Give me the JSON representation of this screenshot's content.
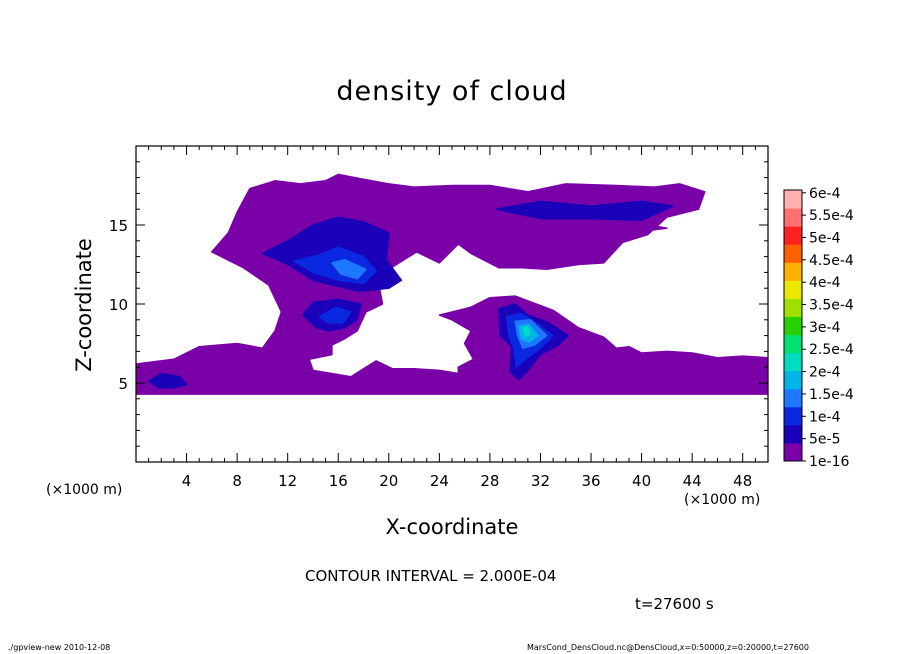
{
  "chart_data": {
    "type": "heatmap",
    "title": "density of cloud",
    "xlabel": "X-coordinate",
    "ylabel": "Z-coordinate",
    "x_unit": "(×1000 m)",
    "z_unit": "(×1000 m)",
    "xlim": [
      0,
      50
    ],
    "ylim": [
      0,
      20
    ],
    "x_ticks": [
      4,
      8,
      12,
      16,
      20,
      24,
      28,
      32,
      36,
      40,
      44,
      48
    ],
    "y_ticks": [
      5,
      10,
      15
    ],
    "x_tick_labels": [
      "4",
      "8",
      "12",
      "16",
      "20",
      "24",
      "28",
      "32",
      "36",
      "40",
      "44",
      "48"
    ],
    "y_tick_labels": [
      "5",
      "10",
      "15"
    ],
    "legend": {
      "placement": "right",
      "labels": [
        "1e-16",
        "5e-5",
        "1e-4",
        "1.5e-4",
        "2e-4",
        "2.5e-4",
        "3e-4",
        "3.5e-4",
        "4e-4",
        "4.5e-4",
        "5e-4",
        "5.5e-4",
        "6e-4"
      ],
      "colors": [
        "#7a00a8",
        "#1a00b8",
        "#0a28e0",
        "#1e78ff",
        "#00b4e8",
        "#00dcc0",
        "#00e070",
        "#28d000",
        "#a0e000",
        "#e8e800",
        "#ffb000",
        "#ff6000",
        "#ff2020",
        "#ff7070",
        "#ffb0b0"
      ]
    },
    "cloud_regions": [
      {
        "level": "1e-16",
        "color": "#7a00a8",
        "polygon": [
          [
            0,
            4.3
          ],
          [
            0,
            6.2
          ],
          [
            3,
            6.5
          ],
          [
            5,
            7.3
          ],
          [
            8,
            7.5
          ],
          [
            10,
            7.2
          ],
          [
            11,
            8.3
          ],
          [
            11.5,
            9.5
          ],
          [
            10.5,
            11.2
          ],
          [
            8.5,
            12.3
          ],
          [
            6,
            13.3
          ],
          [
            7.3,
            14.5
          ],
          [
            8,
            15.8
          ],
          [
            9,
            17.3
          ],
          [
            11,
            17.8
          ],
          [
            13,
            17.6
          ],
          [
            15,
            17.8
          ],
          [
            16,
            18.2
          ],
          [
            17.3,
            18
          ],
          [
            20,
            17.6
          ],
          [
            22,
            17.4
          ],
          [
            25,
            17.5
          ],
          [
            28,
            17.5
          ],
          [
            31,
            17.1
          ],
          [
            34,
            17.6
          ],
          [
            38,
            17.5
          ],
          [
            41,
            17.4
          ],
          [
            43,
            17.6
          ],
          [
            45,
            17.1
          ],
          [
            44.5,
            16
          ],
          [
            42,
            15.5
          ],
          [
            40.5,
            14.4
          ],
          [
            38.5,
            13.9
          ],
          [
            37,
            12.6
          ],
          [
            35,
            12.5
          ],
          [
            32.5,
            12.2
          ],
          [
            30.5,
            12.3
          ],
          [
            28.7,
            12.3
          ],
          [
            26.5,
            13.2
          ],
          [
            25.5,
            13.8
          ],
          [
            24,
            12.6
          ],
          [
            22.2,
            13.3
          ],
          [
            20,
            12.2
          ],
          [
            19.2,
            11.3
          ],
          [
            19.5,
            10
          ],
          [
            18.2,
            9.5
          ],
          [
            17.5,
            8.3
          ],
          [
            16.5,
            7.8
          ],
          [
            15.5,
            7.4
          ],
          [
            15.5,
            6.8
          ],
          [
            13.7,
            6.5
          ],
          [
            14,
            5.8
          ],
          [
            17,
            5.4
          ],
          [
            18,
            5.9
          ],
          [
            19,
            6.4
          ],
          [
            20.3,
            5.9
          ],
          [
            22,
            5.9
          ],
          [
            24,
            5.8
          ],
          [
            25.5,
            5.6
          ],
          [
            25.5,
            6
          ],
          [
            26.7,
            6.5
          ],
          [
            26,
            7.5
          ],
          [
            26.5,
            8.3
          ],
          [
            25,
            9
          ],
          [
            24,
            9.3
          ],
          [
            26.5,
            9.8
          ],
          [
            28,
            10.4
          ],
          [
            30,
            10.5
          ],
          [
            33,
            9.6
          ],
          [
            35,
            8.5
          ],
          [
            37,
            7.9
          ],
          [
            38,
            7.2
          ],
          [
            39,
            7.3
          ],
          [
            40,
            6.9
          ],
          [
            42,
            7
          ],
          [
            44,
            6.9
          ],
          [
            46,
            6.6
          ],
          [
            48,
            6.7
          ],
          [
            50,
            6.6
          ],
          [
            50,
            4.3
          ]
        ]
      },
      {
        "level": "1e-16",
        "color": "#7a00a8",
        "polygon": [
          [
            24,
            13.8
          ],
          [
            27,
            13.9
          ],
          [
            29,
            14.5
          ],
          [
            32,
            15
          ],
          [
            36,
            14.7
          ],
          [
            40,
            14.6
          ],
          [
            42,
            14.8
          ],
          [
            38,
            15.4
          ],
          [
            34,
            15.1
          ],
          [
            30,
            15.1
          ],
          [
            27,
            15
          ],
          [
            24.3,
            14.5
          ]
        ]
      },
      {
        "level": "5e-5",
        "color": "#1a00b8",
        "polygon": [
          [
            10,
            13.2
          ],
          [
            12,
            14
          ],
          [
            14,
            15
          ],
          [
            16,
            15.5
          ],
          [
            18,
            15.2
          ],
          [
            20,
            14.5
          ],
          [
            19.8,
            12.8
          ],
          [
            21,
            11.5
          ],
          [
            20,
            11
          ],
          [
            17.7,
            10.8
          ],
          [
            14,
            11.5
          ],
          [
            12,
            12.5
          ]
        ]
      },
      {
        "level": "5e-5",
        "color": "#1a00b8",
        "polygon": [
          [
            13.2,
            9.3
          ],
          [
            14,
            10.1
          ],
          [
            16,
            10.3
          ],
          [
            17.8,
            10
          ],
          [
            17.5,
            9
          ],
          [
            16.5,
            8.5
          ],
          [
            15.3,
            8.3
          ],
          [
            14.3,
            8.5
          ]
        ]
      },
      {
        "level": "5e-5",
        "color": "#1a00b8",
        "polygon": [
          [
            28.7,
            9.7
          ],
          [
            30,
            10
          ],
          [
            31,
            9.3
          ],
          [
            32.7,
            8.8
          ],
          [
            34.2,
            8
          ],
          [
            33.4,
            7.4
          ],
          [
            32,
            6.8
          ],
          [
            31,
            5.8
          ],
          [
            30.3,
            5.2
          ],
          [
            29.6,
            5.7
          ],
          [
            29.7,
            7.3
          ],
          [
            28.8,
            8
          ]
        ]
      },
      {
        "level": "5e-5",
        "color": "#1a00b8",
        "polygon": [
          [
            1,
            5.1
          ],
          [
            2,
            5.6
          ],
          [
            3.5,
            5.4
          ],
          [
            4,
            4.9
          ],
          [
            3,
            4.7
          ],
          [
            1.8,
            4.7
          ]
        ]
      },
      {
        "level": "5e-5",
        "color": "#1a00b8",
        "polygon": [
          [
            28.5,
            16
          ],
          [
            32,
            16.5
          ],
          [
            36,
            16.2
          ],
          [
            40,
            16.5
          ],
          [
            42.5,
            16.2
          ],
          [
            40,
            15.3
          ],
          [
            36,
            15.4
          ],
          [
            32,
            15.4
          ]
        ]
      },
      {
        "level": "1e-4",
        "color": "#0a28e0",
        "polygon": [
          [
            12.5,
            12.7
          ],
          [
            14.5,
            13.1
          ],
          [
            16,
            13.6
          ],
          [
            18,
            13
          ],
          [
            19,
            12.1
          ],
          [
            18,
            11.3
          ],
          [
            16,
            11.5
          ],
          [
            14,
            12
          ]
        ]
      },
      {
        "level": "1e-4",
        "color": "#0a28e0",
        "polygon": [
          [
            29.3,
            9.2
          ],
          [
            30.5,
            9.4
          ],
          [
            31.8,
            8.7
          ],
          [
            33,
            8
          ],
          [
            32,
            7.2
          ],
          [
            30.8,
            6.5
          ],
          [
            30.1,
            6
          ],
          [
            29.9,
            7.2
          ],
          [
            29.5,
            8
          ]
        ]
      },
      {
        "level": "1e-4",
        "color": "#0a28e0",
        "polygon": [
          [
            14.5,
            9.2
          ],
          [
            15.8,
            9.8
          ],
          [
            17,
            9.5
          ],
          [
            16.4,
            8.8
          ],
          [
            15.2,
            8.8
          ]
        ]
      },
      {
        "level": "1.5e-4",
        "color": "#1e78ff",
        "polygon": [
          [
            15.5,
            12.6
          ],
          [
            16.5,
            12.8
          ],
          [
            18.2,
            12.2
          ],
          [
            17.5,
            11.6
          ],
          [
            16.2,
            11.9
          ]
        ]
      },
      {
        "level": "1.5e-4",
        "color": "#1e78ff",
        "polygon": [
          [
            30,
            8.9
          ],
          [
            31.2,
            9
          ],
          [
            32.5,
            8
          ],
          [
            31.5,
            7.4
          ],
          [
            30.6,
            7.2
          ],
          [
            30.2,
            8
          ]
        ]
      },
      {
        "level": "2e-4",
        "color": "#00b4e8",
        "polygon": [
          [
            30.3,
            8.6
          ],
          [
            31.1,
            8.7
          ],
          [
            31.8,
            8
          ],
          [
            31.1,
            7.6
          ],
          [
            30.5,
            7.8
          ]
        ]
      },
      {
        "level": "2.5e-4",
        "color": "#00dcc0",
        "polygon": [
          [
            30.6,
            8.5
          ],
          [
            31,
            8.5
          ],
          [
            31.2,
            8.1
          ],
          [
            30.8,
            8
          ]
        ]
      }
    ]
  },
  "annotations": {
    "contour_interval": "CONTOUR INTERVAL = 2.000E-04",
    "time": "t=27600 s",
    "footer_left": "./gpview-new   2010-12-08",
    "footer_right": "MarsCond_DensCloud.nc@DensCloud,x=0:50000,z=0:20000,t=27600"
  }
}
